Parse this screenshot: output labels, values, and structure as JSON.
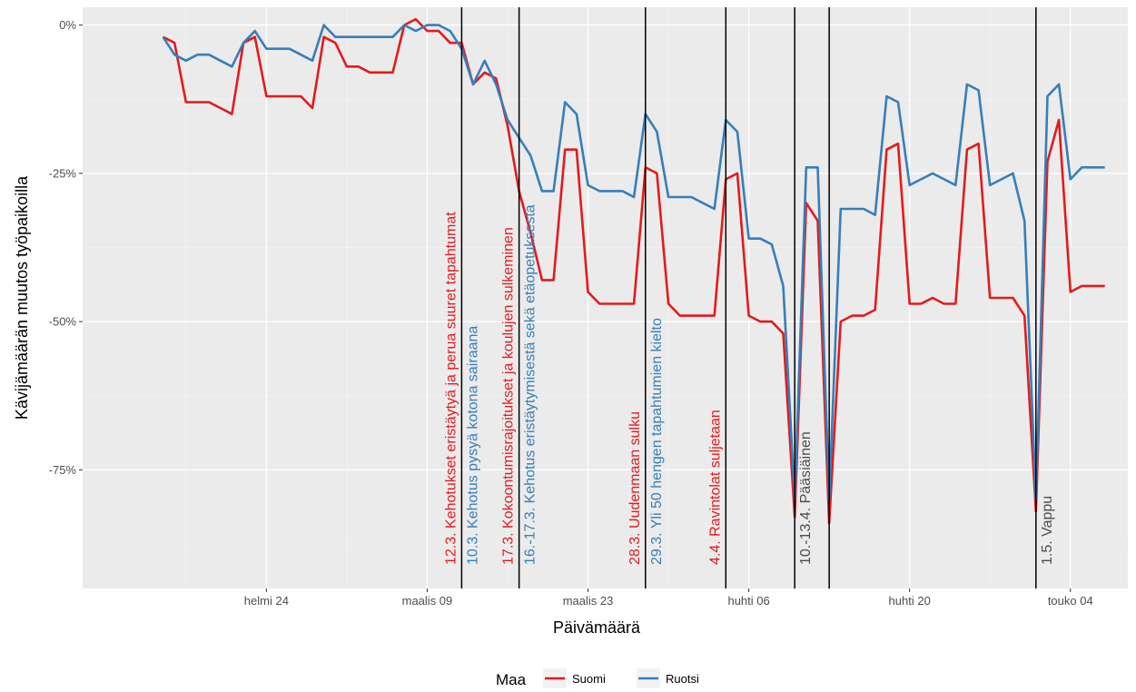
{
  "chart_data": {
    "type": "line",
    "xlabel": "Päivämäärä",
    "ylabel": "Kävijämäärän muutos työpaikoilla",
    "x_range": [
      "2020-02-08",
      "2020-05-09"
    ],
    "ylim": [
      -95,
      3
    ],
    "y_ticks": [
      {
        "value": 0,
        "label": "0%"
      },
      {
        "value": -25,
        "label": "-25%"
      },
      {
        "value": -50,
        "label": "-50%"
      },
      {
        "value": -75,
        "label": "-75%"
      }
    ],
    "x_ticks": [
      {
        "date": "2020-02-24",
        "label": "helmi 24"
      },
      {
        "date": "2020-03-09",
        "label": "maalis 09"
      },
      {
        "date": "2020-03-23",
        "label": "maalis 23"
      },
      {
        "date": "2020-04-06",
        "label": "huhti 06"
      },
      {
        "date": "2020-04-20",
        "label": "huhti 20"
      },
      {
        "date": "2020-05-04",
        "label": "touko 04"
      }
    ],
    "grid": true,
    "legend": {
      "title": "Maa",
      "position": "bottom"
    },
    "series": [
      {
        "name": "Suomi",
        "color": "#E41A1C",
        "values": [
          [
            "2020-02-15",
            -2
          ],
          [
            "2020-02-16",
            -3
          ],
          [
            "2020-02-17",
            -13
          ],
          [
            "2020-02-18",
            -13
          ],
          [
            "2020-02-19",
            -13
          ],
          [
            "2020-02-20",
            -14
          ],
          [
            "2020-02-21",
            -15
          ],
          [
            "2020-02-22",
            -3
          ],
          [
            "2020-02-23",
            -2
          ],
          [
            "2020-02-24",
            -12
          ],
          [
            "2020-02-25",
            -12
          ],
          [
            "2020-02-26",
            -12
          ],
          [
            "2020-02-27",
            -12
          ],
          [
            "2020-02-28",
            -14
          ],
          [
            "2020-02-29",
            -2
          ],
          [
            "2020-03-01",
            -3
          ],
          [
            "2020-03-02",
            -7
          ],
          [
            "2020-03-03",
            -7
          ],
          [
            "2020-03-04",
            -8
          ],
          [
            "2020-03-05",
            -8
          ],
          [
            "2020-03-06",
            -8
          ],
          [
            "2020-03-07",
            0
          ],
          [
            "2020-03-08",
            1
          ],
          [
            "2020-03-09",
            -1
          ],
          [
            "2020-03-10",
            -1
          ],
          [
            "2020-03-11",
            -3
          ],
          [
            "2020-03-12",
            -3
          ],
          [
            "2020-03-13",
            -10
          ],
          [
            "2020-03-14",
            -8
          ],
          [
            "2020-03-15",
            -9
          ],
          [
            "2020-03-16",
            -17
          ],
          [
            "2020-03-17",
            -28
          ],
          [
            "2020-03-18",
            -35
          ],
          [
            "2020-03-19",
            -43
          ],
          [
            "2020-03-20",
            -43
          ],
          [
            "2020-03-21",
            -21
          ],
          [
            "2020-03-22",
            -21
          ],
          [
            "2020-03-23",
            -45
          ],
          [
            "2020-03-24",
            -47
          ],
          [
            "2020-03-25",
            -47
          ],
          [
            "2020-03-26",
            -47
          ],
          [
            "2020-03-27",
            -47
          ],
          [
            "2020-03-28",
            -24
          ],
          [
            "2020-03-29",
            -25
          ],
          [
            "2020-03-30",
            -47
          ],
          [
            "2020-03-31",
            -49
          ],
          [
            "2020-04-01",
            -49
          ],
          [
            "2020-04-02",
            -49
          ],
          [
            "2020-04-03",
            -49
          ],
          [
            "2020-04-04",
            -26
          ],
          [
            "2020-04-05",
            -25
          ],
          [
            "2020-04-06",
            -49
          ],
          [
            "2020-04-07",
            -50
          ],
          [
            "2020-04-08",
            -50
          ],
          [
            "2020-04-09",
            -52
          ],
          [
            "2020-04-10",
            -83
          ],
          [
            "2020-04-11",
            -30
          ],
          [
            "2020-04-12",
            -33
          ],
          [
            "2020-04-13",
            -84
          ],
          [
            "2020-04-14",
            -50
          ],
          [
            "2020-04-15",
            -49
          ],
          [
            "2020-04-16",
            -49
          ],
          [
            "2020-04-17",
            -48
          ],
          [
            "2020-04-18",
            -21
          ],
          [
            "2020-04-19",
            -20
          ],
          [
            "2020-04-20",
            -47
          ],
          [
            "2020-04-21",
            -47
          ],
          [
            "2020-04-22",
            -46
          ],
          [
            "2020-04-23",
            -47
          ],
          [
            "2020-04-24",
            -47
          ],
          [
            "2020-04-25",
            -21
          ],
          [
            "2020-04-26",
            -20
          ],
          [
            "2020-04-27",
            -46
          ],
          [
            "2020-04-28",
            -46
          ],
          [
            "2020-04-29",
            -46
          ],
          [
            "2020-04-30",
            -49
          ],
          [
            "2020-05-01",
            -82
          ],
          [
            "2020-05-02",
            -23
          ],
          [
            "2020-05-03",
            -16
          ],
          [
            "2020-05-04",
            -45
          ],
          [
            "2020-05-05",
            -44
          ],
          [
            "2020-05-06",
            -44
          ],
          [
            "2020-05-07",
            -44
          ]
        ]
      },
      {
        "name": "Ruotsi",
        "color": "#377EB8",
        "values": [
          [
            "2020-02-15",
            -2
          ],
          [
            "2020-02-16",
            -5
          ],
          [
            "2020-02-17",
            -6
          ],
          [
            "2020-02-18",
            -5
          ],
          [
            "2020-02-19",
            -5
          ],
          [
            "2020-02-20",
            -6
          ],
          [
            "2020-02-21",
            -7
          ],
          [
            "2020-02-22",
            -3
          ],
          [
            "2020-02-23",
            -1
          ],
          [
            "2020-02-24",
            -4
          ],
          [
            "2020-02-25",
            -4
          ],
          [
            "2020-02-26",
            -4
          ],
          [
            "2020-02-27",
            -5
          ],
          [
            "2020-02-28",
            -6
          ],
          [
            "2020-02-29",
            0
          ],
          [
            "2020-03-01",
            -2
          ],
          [
            "2020-03-02",
            -2
          ],
          [
            "2020-03-03",
            -2
          ],
          [
            "2020-03-04",
            -2
          ],
          [
            "2020-03-05",
            -2
          ],
          [
            "2020-03-06",
            -2
          ],
          [
            "2020-03-07",
            0
          ],
          [
            "2020-03-08",
            -1
          ],
          [
            "2020-03-09",
            0
          ],
          [
            "2020-03-10",
            0
          ],
          [
            "2020-03-11",
            -1
          ],
          [
            "2020-03-12",
            -4
          ],
          [
            "2020-03-13",
            -10
          ],
          [
            "2020-03-14",
            -6
          ],
          [
            "2020-03-15",
            -10
          ],
          [
            "2020-03-16",
            -16
          ],
          [
            "2020-03-17",
            -19
          ],
          [
            "2020-03-18",
            -22
          ],
          [
            "2020-03-19",
            -28
          ],
          [
            "2020-03-20",
            -28
          ],
          [
            "2020-03-21",
            -13
          ],
          [
            "2020-03-22",
            -15
          ],
          [
            "2020-03-23",
            -27
          ],
          [
            "2020-03-24",
            -28
          ],
          [
            "2020-03-25",
            -28
          ],
          [
            "2020-03-26",
            -28
          ],
          [
            "2020-03-27",
            -29
          ],
          [
            "2020-03-28",
            -15
          ],
          [
            "2020-03-29",
            -18
          ],
          [
            "2020-03-30",
            -29
          ],
          [
            "2020-03-31",
            -29
          ],
          [
            "2020-04-01",
            -29
          ],
          [
            "2020-04-02",
            -30
          ],
          [
            "2020-04-03",
            -31
          ],
          [
            "2020-04-04",
            -16
          ],
          [
            "2020-04-05",
            -18
          ],
          [
            "2020-04-06",
            -36
          ],
          [
            "2020-04-07",
            -36
          ],
          [
            "2020-04-08",
            -37
          ],
          [
            "2020-04-09",
            -44
          ],
          [
            "2020-04-10",
            -80
          ],
          [
            "2020-04-11",
            -24
          ],
          [
            "2020-04-12",
            -24
          ],
          [
            "2020-04-13",
            -80
          ],
          [
            "2020-04-14",
            -31
          ],
          [
            "2020-04-15",
            -31
          ],
          [
            "2020-04-16",
            -31
          ],
          [
            "2020-04-17",
            -32
          ],
          [
            "2020-04-18",
            -12
          ],
          [
            "2020-04-19",
            -13
          ],
          [
            "2020-04-20",
            -27
          ],
          [
            "2020-04-21",
            -26
          ],
          [
            "2020-04-22",
            -25
          ],
          [
            "2020-04-23",
            -26
          ],
          [
            "2020-04-24",
            -27
          ],
          [
            "2020-04-25",
            -10
          ],
          [
            "2020-04-26",
            -11
          ],
          [
            "2020-04-27",
            -27
          ],
          [
            "2020-04-28",
            -26
          ],
          [
            "2020-04-29",
            -25
          ],
          [
            "2020-04-30",
            -33
          ],
          [
            "2020-05-01",
            -80
          ],
          [
            "2020-05-02",
            -12
          ],
          [
            "2020-05-03",
            -10
          ],
          [
            "2020-05-04",
            -26
          ],
          [
            "2020-05-05",
            -24
          ],
          [
            "2020-05-06",
            -24
          ],
          [
            "2020-05-07",
            -24
          ]
        ]
      }
    ],
    "vlines": [
      {
        "date": "2020-03-12"
      },
      {
        "date": "2020-03-17"
      },
      {
        "date": "2020-03-28"
      },
      {
        "date": "2020-04-04"
      },
      {
        "date": "2020-04-10"
      },
      {
        "date": "2020-04-13"
      },
      {
        "date": "2020-05-01"
      }
    ],
    "annotations": [
      {
        "date": "2020-03-12",
        "side": "left",
        "text": "12.3. Kehotukset eristäytyä ja perua suuret tapahtumat",
        "color": "#E41A1C"
      },
      {
        "date": "2020-03-12",
        "side": "right",
        "text": "10.3. Kehotus pysyä kotona sairaana",
        "color": "#377EB8"
      },
      {
        "date": "2020-03-17",
        "side": "left",
        "text": "17.3. Kokoontumisrajoitukset ja koulujen sulkeminen",
        "color": "#E41A1C"
      },
      {
        "date": "2020-03-17",
        "side": "right",
        "text": "16.-17.3. Kehotus eristäytymisestä sekä etäopetuksesta",
        "color": "#377EB8"
      },
      {
        "date": "2020-03-28",
        "side": "left",
        "text": "28.3. Uudenmaan sulku",
        "color": "#E41A1C"
      },
      {
        "date": "2020-03-28",
        "side": "right",
        "text": "29.3. Yli 50 hengen tapahtumien kielto",
        "color": "#377EB8"
      },
      {
        "date": "2020-04-04",
        "side": "left",
        "text": "4.4. Ravintolat suljetaan",
        "color": "#E41A1C"
      },
      {
        "date": "2020-04-10",
        "side": "right",
        "text": "10.-13.4. Pääsiäinen",
        "color": "#4D4D4D"
      },
      {
        "date": "2020-05-01",
        "side": "right",
        "text": "1.5. Vappu",
        "color": "#4D4D4D"
      }
    ]
  }
}
